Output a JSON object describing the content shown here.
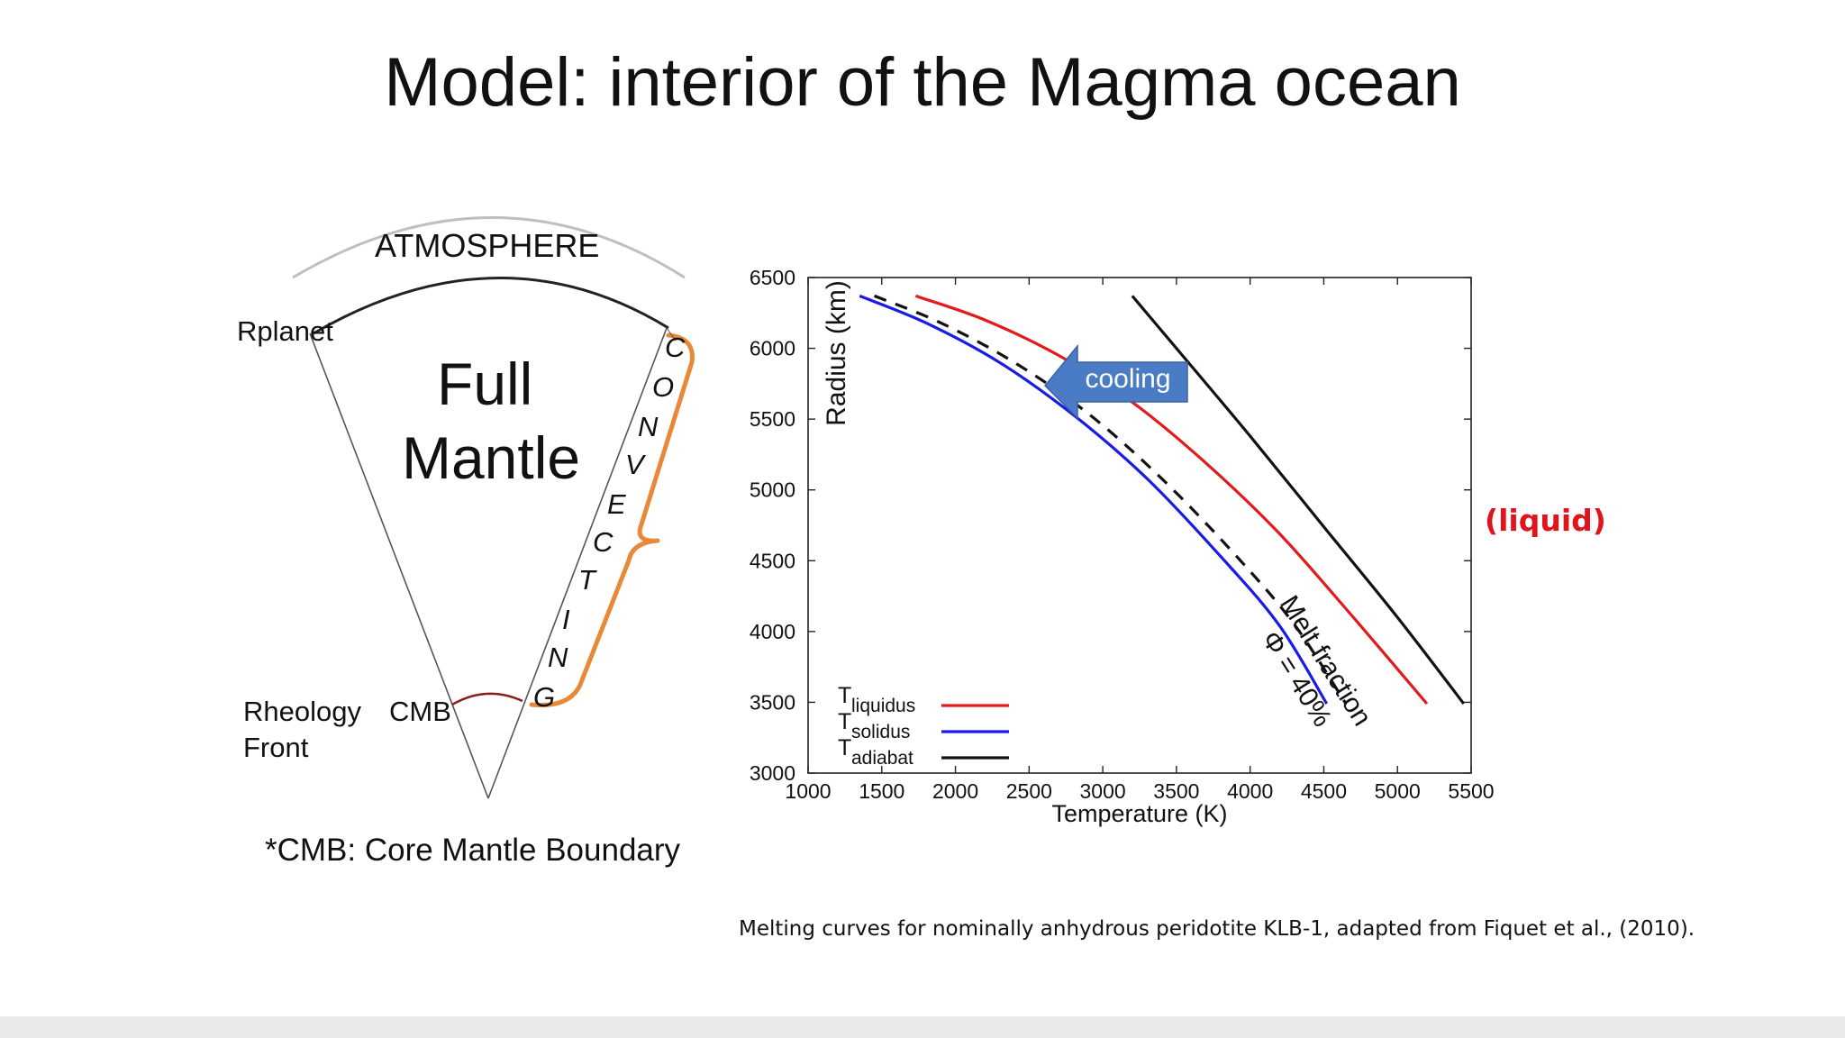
{
  "slide": {
    "title": "Model: interior of the Magma ocean",
    "caption": "Melting curves for nominally anhydrous peridotite KLB-1, adapted from  Fiquet et al., (2010).",
    "liquid_label": "(liquid)"
  },
  "diagram": {
    "atmosphere_label": "ATMOSPHERE",
    "rplanet_label": "Rplanet",
    "full_label": "Full",
    "mantle_label": "Mantle",
    "convecting_letters": [
      "C",
      "O",
      "N",
      "V",
      "E",
      "C",
      "T",
      "I",
      "N",
      "G"
    ],
    "rheology_label": "Rheology",
    "front_label": "Front",
    "cmb_label": "CMB",
    "footnote": "*CMB: Core Mantle Boundary",
    "colors": {
      "brace": "#e8893a",
      "front_arc": "#8b1d1d",
      "outline": "#333333",
      "atmosphere_arc": "#bfbfbf"
    }
  },
  "chart_data": {
    "type": "line",
    "xlabel": "Temperature (K)",
    "ylabel": "Radius (km)",
    "xlim": [
      1000,
      5500
    ],
    "ylim": [
      3000,
      6500
    ],
    "xticks": [
      1000,
      1500,
      2000,
      2500,
      3000,
      3500,
      4000,
      4500,
      5000,
      5500
    ],
    "yticks": [
      3000,
      3500,
      4000,
      4500,
      5000,
      5500,
      6000,
      6500
    ],
    "series": [
      {
        "name": "T",
        "sub": "liquidus",
        "color": "#e31a1c",
        "points": [
          [
            1730,
            6370
          ],
          [
            2200,
            6200
          ],
          [
            2700,
            5950
          ],
          [
            3200,
            5620
          ],
          [
            3700,
            5190
          ],
          [
            4200,
            4690
          ],
          [
            4700,
            4100
          ],
          [
            5200,
            3490
          ]
        ]
      },
      {
        "name": "T",
        "sub": "solidus",
        "color": "#1a1ae6",
        "points": [
          [
            1350,
            6370
          ],
          [
            1800,
            6180
          ],
          [
            2300,
            5900
          ],
          [
            2800,
            5530
          ],
          [
            3300,
            5080
          ],
          [
            3800,
            4530
          ],
          [
            4200,
            4040
          ],
          [
            4520,
            3490
          ]
        ]
      },
      {
        "name": "T",
        "sub": "adiabat",
        "color": "#111111",
        "points": [
          [
            3200,
            6370
          ],
          [
            3500,
            6000
          ],
          [
            4000,
            5380
          ],
          [
            4500,
            4740
          ],
          [
            5000,
            4100
          ],
          [
            5450,
            3490
          ]
        ]
      }
    ],
    "melt_fraction_curve": {
      "color": "#111111",
      "dashed": true,
      "points": [
        [
          1450,
          6370
        ],
        [
          1900,
          6180
        ],
        [
          2400,
          5900
        ],
        [
          2900,
          5540
        ],
        [
          3400,
          5080
        ],
        [
          3900,
          4540
        ],
        [
          4300,
          4050
        ],
        [
          4650,
          3490
        ]
      ]
    },
    "annotations": {
      "cooling": "cooling",
      "cooling_color": "#4a7cc6",
      "melt_fraction_line1": "Melt fraction",
      "melt_fraction_line2": "Φ = 40%"
    },
    "legend": "bottom-left",
    "grid": false
  }
}
